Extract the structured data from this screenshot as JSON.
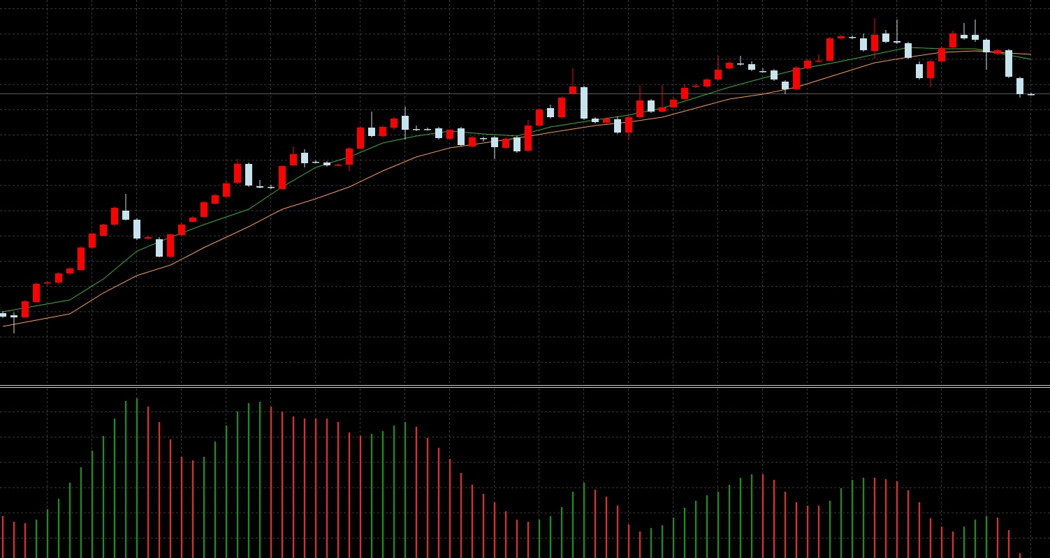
{
  "chart_data": [
    {
      "type": "candlestick",
      "ylim": [
        0,
        550
      ],
      "up_color": "#ff0000",
      "down_color": "#c6e4ee",
      "open": [
        101,
        98,
        95,
        117,
        144,
        145,
        158,
        163,
        195,
        212,
        228,
        248,
        235,
        208,
        207,
        182,
        213,
        232,
        239,
        258,
        268,
        288,
        315,
        283,
        282,
        279,
        313,
        331,
        318,
        317,
        313,
        314,
        337,
        367,
        355,
        367,
        384,
        365,
        365,
        366,
        351,
        366,
        340,
        352,
        353,
        338,
        353,
        334,
        370,
        395,
        382,
        416,
        425,
        380,
        374,
        379,
        360,
        382,
        406,
        390,
        396,
        408,
        426,
        426,
        436,
        452,
        459,
        458,
        448,
        449,
        433,
        422,
        452,
        462,
        463,
        495,
        497,
        495,
        477,
        502,
        491,
        488,
        458,
        438,
        462,
        482,
        500,
        500,
        493,
        473,
        478,
        438,
        415
      ],
      "high": [
        104,
        102,
        120,
        145,
        146,
        160,
        167,
        197,
        216,
        229,
        254,
        272,
        237,
        212,
        210,
        215,
        230,
        240,
        262,
        272,
        290,
        322,
        317,
        292,
        285,
        313,
        340,
        336,
        320,
        319,
        316,
        339,
        368,
        390,
        370,
        382,
        397,
        370,
        367,
        368,
        365,
        368,
        355,
        354,
        355,
        353,
        355,
        378,
        395,
        400,
        412,
        452,
        427,
        382,
        382,
        383,
        384,
        428,
        408,
        428,
        410,
        430,
        430,
        438,
        470,
        462,
        470,
        462,
        452,
        451,
        435,
        455,
        465,
        472,
        497,
        500,
        499,
        502,
        524,
        507,
        522,
        490,
        462,
        464,
        483,
        506,
        517,
        522,
        495,
        480,
        480,
        440,
        417
      ],
      "low": [
        94,
        72,
        94,
        116,
        142,
        142,
        156,
        162,
        194,
        211,
        226,
        234,
        206,
        206,
        181,
        180,
        212,
        231,
        238,
        257,
        267,
        286,
        282,
        280,
        279,
        278,
        312,
        310,
        316,
        311,
        312,
        305,
        336,
        353,
        353,
        364,
        350,
        362,
        363,
        350,
        350,
        340,
        338,
        347,
        322,
        337,
        331,
        332,
        369,
        380,
        380,
        415,
        378,
        373,
        372,
        358,
        350,
        380,
        388,
        389,
        395,
        407,
        424,
        424,
        435,
        450,
        456,
        448,
        446,
        434,
        415,
        420,
        450,
        461,
        462,
        493,
        494,
        476,
        466,
        488,
        487,
        465,
        436,
        425,
        460,
        480,
        493,
        490,
        450,
        471,
        438,
        410,
        413
      ],
      "close": [
        96,
        95,
        118,
        143,
        145,
        158,
        165,
        195,
        215,
        228,
        252,
        235,
        208,
        210,
        182,
        214,
        228,
        238,
        260,
        270,
        287,
        315,
        284,
        281,
        281,
        312,
        329,
        316,
        317,
        313,
        314,
        337,
        367,
        355,
        368,
        380,
        364,
        364,
        364,
        352,
        364,
        342,
        353,
        351,
        339,
        351,
        333,
        370,
        393,
        382,
        410,
        426,
        380,
        375,
        380,
        360,
        382,
        406,
        390,
        396,
        407,
        424,
        427,
        436,
        450,
        460,
        458,
        450,
        447,
        436,
        422,
        453,
        463,
        463,
        495,
        498,
        496,
        478,
        500,
        490,
        489,
        467,
        438,
        462,
        481,
        502,
        495,
        493,
        475,
        478,
        440,
        415,
        414
      ],
      "series": [
        {
          "color": "#2fb52f",
          "x": [
            0,
            6,
            9,
            12,
            15,
            18,
            22,
            25,
            28,
            31,
            34,
            37,
            40,
            43,
            46,
            49,
            53,
            56,
            59,
            62,
            65,
            68,
            71,
            75,
            78,
            81,
            84,
            87,
            92
          ],
          "values": [
            103,
            120,
            150,
            190,
            210,
            228,
            250,
            282,
            310,
            325,
            345,
            355,
            362,
            358,
            355,
            368,
            378,
            385,
            395,
            410,
            425,
            438,
            450,
            462,
            472,
            482,
            480,
            480,
            465
          ]
        },
        {
          "color": "#ff9a40",
          "x": [
            0,
            6,
            9,
            12,
            15,
            18,
            22,
            25,
            28,
            31,
            34,
            37,
            40,
            43,
            46,
            49,
            53,
            56,
            59,
            62,
            65,
            68,
            71,
            75,
            78,
            81,
            84,
            87,
            92
          ],
          "values": [
            82,
            100,
            130,
            155,
            170,
            195,
            225,
            250,
            265,
            282,
            305,
            325,
            338,
            345,
            352,
            360,
            370,
            375,
            382,
            395,
            408,
            415,
            425,
            445,
            460,
            468,
            475,
            477,
            472
          ]
        }
      ]
    },
    {
      "type": "bar",
      "ylim": [
        0,
        245
      ],
      "up_color": "#00a400",
      "down_color": "#ff2020",
      "values": [
        60,
        52,
        50,
        55,
        70,
        85,
        108,
        130,
        154,
        175,
        200,
        225,
        229,
        217,
        195,
        170,
        145,
        140,
        145,
        167,
        190,
        210,
        222,
        224,
        217,
        210,
        203,
        200,
        200,
        200,
        195,
        180,
        175,
        178,
        182,
        190,
        195,
        188,
        172,
        158,
        142,
        122,
        105,
        92,
        80,
        67,
        55,
        52,
        55,
        60,
        73,
        95,
        108,
        98,
        88,
        75,
        48,
        38,
        43,
        47,
        58,
        72,
        82,
        90,
        95,
        105,
        115,
        120,
        120,
        112,
        95,
        80,
        75,
        75,
        82,
        100,
        112,
        115,
        115,
        113,
        110,
        97,
        80,
        57,
        45,
        38,
        45,
        55,
        60,
        58,
        40,
        7
      ]
    }
  ]
}
